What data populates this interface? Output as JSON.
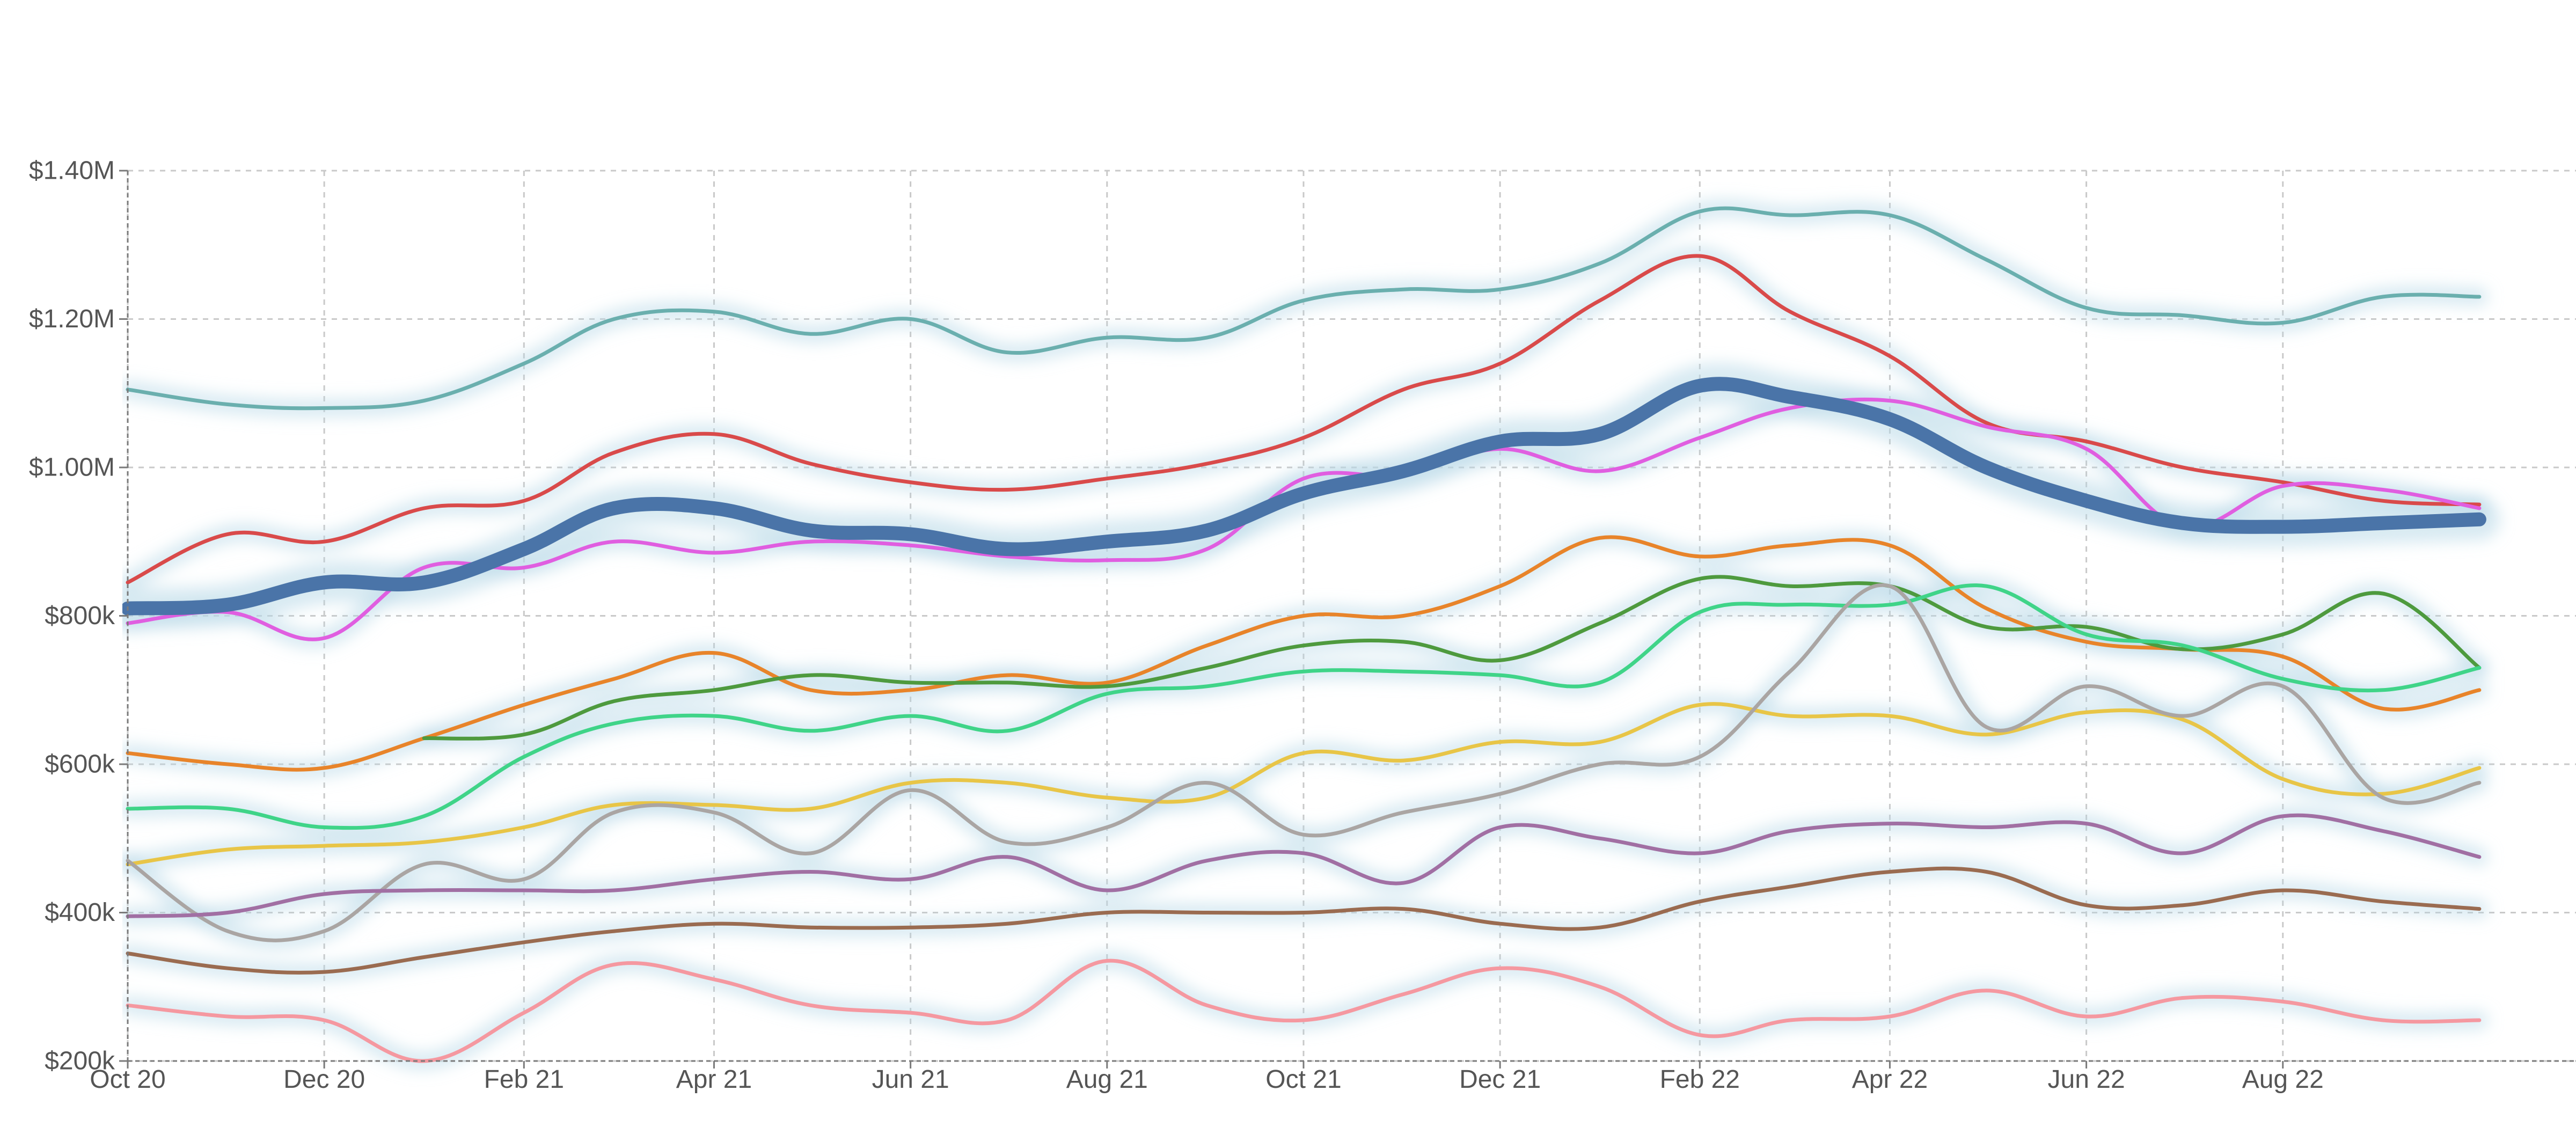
{
  "chart_data": {
    "type": "line",
    "title": "",
    "xlabel": "",
    "ylabel": "",
    "x_domain": [
      "2020-10-01",
      "2022-10-31"
    ],
    "ylim": [
      200000,
      1400000
    ],
    "grid": true,
    "legend": "none",
    "x_ticks": [
      {
        "date": "2020-10-01",
        "label": "Oct 20"
      },
      {
        "date": "2020-12-01",
        "label": "Dec 20"
      },
      {
        "date": "2021-02-01",
        "label": "Feb 21"
      },
      {
        "date": "2021-04-01",
        "label": "Apr 21"
      },
      {
        "date": "2021-06-01",
        "label": "Jun 21"
      },
      {
        "date": "2021-08-01",
        "label": "Aug 21"
      },
      {
        "date": "2021-10-01",
        "label": "Oct 21"
      },
      {
        "date": "2021-12-01",
        "label": "Dec 21"
      },
      {
        "date": "2022-02-01",
        "label": "Feb 22"
      },
      {
        "date": "2022-04-01",
        "label": "Apr 22"
      },
      {
        "date": "2022-06-01",
        "label": "Jun 22"
      },
      {
        "date": "2022-08-01",
        "label": "Aug 22"
      }
    ],
    "y_ticks": [
      {
        "value": 200000,
        "label": "$200k"
      },
      {
        "value": 400000,
        "label": "$400k"
      },
      {
        "value": 600000,
        "label": "$600k"
      },
      {
        "value": 800000,
        "label": "$800k"
      },
      {
        "value": 1000000,
        "label": "$1.00M"
      },
      {
        "value": 1200000,
        "label": "$1.20M"
      },
      {
        "value": 1400000,
        "label": "$1.40M"
      }
    ],
    "x": [
      "2020-10-01",
      "2020-11-01",
      "2020-12-01",
      "2021-01-01",
      "2021-02-01",
      "2021-03-01",
      "2021-04-01",
      "2021-05-01",
      "2021-06-01",
      "2021-07-01",
      "2021-08-01",
      "2021-09-01",
      "2021-10-01",
      "2021-11-01",
      "2021-12-01",
      "2022-01-01",
      "2022-02-01",
      "2022-03-01",
      "2022-04-01",
      "2022-05-01",
      "2022-06-01",
      "2022-07-01",
      "2022-08-01",
      "2022-09-01",
      "2022-10-01"
    ],
    "series": [
      {
        "color": "#6aafae",
        "width": 7,
        "values": [
          1105000,
          1085000,
          1080000,
          1090000,
          1140000,
          1200000,
          1210000,
          1180000,
          1200000,
          1155000,
          1175000,
          1175000,
          1225000,
          1240000,
          1240000,
          1275000,
          1345000,
          1340000,
          1340000,
          1280000,
          1215000,
          1205000,
          1195000,
          1230000,
          1230000
        ]
      },
      {
        "color": "#d94a4a",
        "width": 7,
        "values": [
          845000,
          910000,
          900000,
          945000,
          955000,
          1020000,
          1045000,
          1005000,
          980000,
          970000,
          985000,
          1005000,
          1040000,
          1105000,
          1140000,
          1225000,
          1285000,
          1210000,
          1150000,
          1060000,
          1035000,
          1000000,
          980000,
          955000,
          950000
        ]
      },
      {
        "color": "#e05ee0",
        "width": 7,
        "values": [
          790000,
          805000,
          770000,
          865000,
          865000,
          900000,
          885000,
          900000,
          895000,
          880000,
          875000,
          890000,
          985000,
          990000,
          1025000,
          995000,
          1040000,
          1080000,
          1090000,
          1055000,
          1025000,
          920000,
          975000,
          970000,
          945000
        ]
      },
      {
        "color": "#4a74a8",
        "width": 26,
        "values": [
          810000,
          815000,
          845000,
          845000,
          890000,
          945000,
          945000,
          915000,
          910000,
          890000,
          900000,
          915000,
          965000,
          995000,
          1035000,
          1045000,
          1110000,
          1095000,
          1065000,
          1000000,
          955000,
          925000,
          920000,
          925000,
          930000
        ]
      },
      {
        "color": "#e8842a",
        "width": 7,
        "values": [
          615000,
          600000,
          595000,
          635000,
          680000,
          715000,
          750000,
          700000,
          700000,
          720000,
          710000,
          760000,
          800000,
          800000,
          840000,
          905000,
          880000,
          895000,
          895000,
          810000,
          765000,
          755000,
          745000,
          675000,
          700000
        ]
      },
      {
        "color": "#4e9a3e",
        "width": 7,
        "values": [
          null,
          null,
          null,
          635000,
          640000,
          685000,
          700000,
          720000,
          710000,
          710000,
          705000,
          730000,
          760000,
          765000,
          740000,
          790000,
          850000,
          840000,
          840000,
          785000,
          785000,
          755000,
          775000,
          830000,
          730000
        ]
      },
      {
        "color": "#3fd488",
        "width": 7,
        "values": [
          540000,
          540000,
          515000,
          530000,
          610000,
          655000,
          665000,
          645000,
          665000,
          645000,
          695000,
          705000,
          725000,
          725000,
          720000,
          710000,
          805000,
          815000,
          815000,
          840000,
          775000,
          760000,
          715000,
          700000,
          730000
        ]
      },
      {
        "color": "#e8c547",
        "width": 7,
        "values": [
          465000,
          485000,
          490000,
          495000,
          515000,
          545000,
          545000,
          540000,
          575000,
          575000,
          555000,
          555000,
          615000,
          605000,
          630000,
          630000,
          680000,
          665000,
          665000,
          640000,
          670000,
          660000,
          580000,
          560000,
          595000
        ]
      },
      {
        "color": "#aaa5a3",
        "width": 7,
        "values": [
          470000,
          375000,
          375000,
          465000,
          445000,
          535000,
          535000,
          480000,
          565000,
          495000,
          515000,
          575000,
          505000,
          535000,
          560000,
          600000,
          610000,
          725000,
          840000,
          650000,
          705000,
          665000,
          705000,
          555000,
          575000
        ]
      },
      {
        "color": "#a16fa3",
        "width": 7,
        "values": [
          395000,
          400000,
          425000,
          430000,
          430000,
          430000,
          445000,
          455000,
          445000,
          475000,
          430000,
          470000,
          480000,
          440000,
          515000,
          500000,
          480000,
          510000,
          520000,
          515000,
          520000,
          480000,
          530000,
          510000,
          475000
        ]
      },
      {
        "color": "#9a6b50",
        "width": 7,
        "values": [
          345000,
          325000,
          320000,
          340000,
          360000,
          375000,
          385000,
          380000,
          380000,
          385000,
          400000,
          400000,
          400000,
          405000,
          385000,
          380000,
          415000,
          435000,
          455000,
          455000,
          410000,
          410000,
          430000,
          415000,
          405000
        ]
      },
      {
        "color": "#f598a0",
        "width": 7,
        "values": [
          275000,
          260000,
          255000,
          200000,
          265000,
          330000,
          310000,
          275000,
          265000,
          255000,
          335000,
          275000,
          255000,
          290000,
          325000,
          300000,
          235000,
          255000,
          260000,
          295000,
          260000,
          285000,
          280000,
          255000,
          255000
        ]
      }
    ]
  }
}
